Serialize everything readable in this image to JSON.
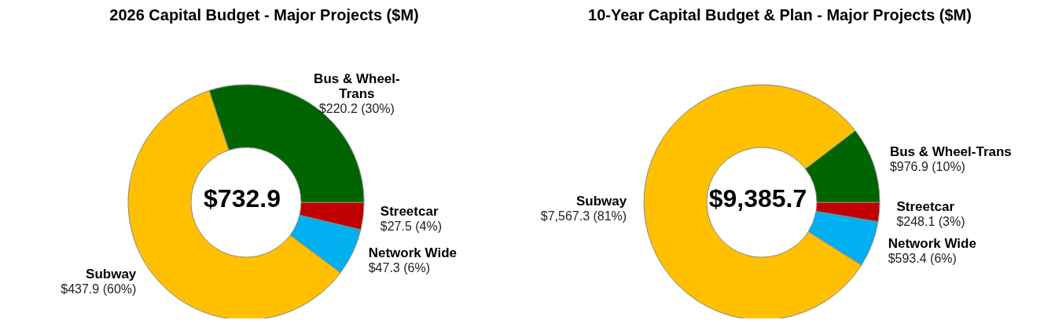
{
  "chart_data": [
    {
      "type": "donut",
      "title": "2026 Capital Budget - Major Projects ($M)",
      "categories": [
        "Streetcar",
        "Network Wide",
        "Subway",
        "Bus & Wheel-Trans"
      ],
      "values": [
        27.5,
        47.3,
        437.9,
        220.2
      ],
      "colors": [
        "#c00000",
        "#00b0f0",
        "#ffc000",
        "#006400"
      ],
      "value_labels": [
        "$27.5 (4%)",
        "$47.3 (6%)",
        "$437.9 (60%)",
        "$220.2 (30%)"
      ],
      "annotations": [
        "$732.9"
      ]
    },
    {
      "type": "donut",
      "title": "10-Year Capital Budget & Plan - Major Projects ($M)",
      "categories": [
        "Streetcar",
        "Network Wide",
        "Subway",
        "Bus & Wheel-Trans"
      ],
      "values": [
        248.1,
        593.4,
        7567.3,
        976.9
      ],
      "colors": [
        "#c00000",
        "#00b0f0",
        "#ffc000",
        "#006400"
      ],
      "value_labels": [
        "$248.1 (3%)",
        "$593.4 (6%)",
        "$7,567.3 (81%)",
        "$976.9 (10%)"
      ],
      "annotations": [
        "$9,385.7"
      ]
    }
  ]
}
